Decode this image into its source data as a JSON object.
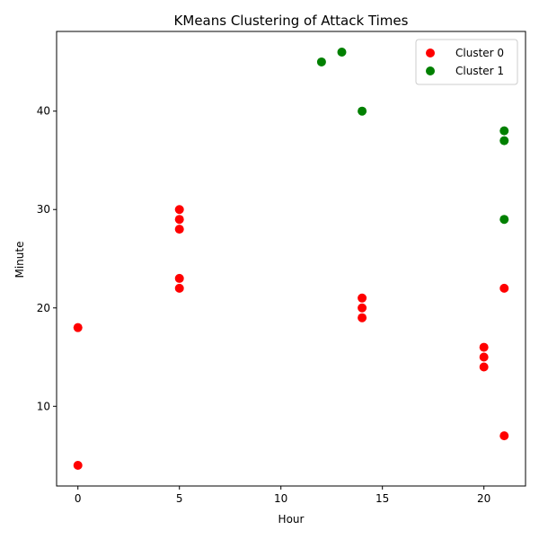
{
  "chart_data": {
    "type": "scatter",
    "title": "KMeans Clustering of Attack Times",
    "xlabel": "Hour",
    "ylabel": "Minute",
    "xlim": [
      -1.05,
      22.05
    ],
    "ylim": [
      1.9,
      48.1
    ],
    "xticks": [
      0,
      5,
      10,
      15,
      20
    ],
    "yticks": [
      10,
      20,
      30,
      40
    ],
    "grid": false,
    "legend_position": "top-right",
    "series": [
      {
        "name": "Cluster 0",
        "color": "#ff0000",
        "points": [
          {
            "x": 0,
            "y": 4
          },
          {
            "x": 0,
            "y": 18
          },
          {
            "x": 5,
            "y": 22
          },
          {
            "x": 5,
            "y": 23
          },
          {
            "x": 5,
            "y": 28
          },
          {
            "x": 5,
            "y": 29
          },
          {
            "x": 5,
            "y": 30
          },
          {
            "x": 14,
            "y": 19
          },
          {
            "x": 14,
            "y": 20
          },
          {
            "x": 14,
            "y": 21
          },
          {
            "x": 20,
            "y": 14
          },
          {
            "x": 20,
            "y": 15
          },
          {
            "x": 20,
            "y": 16
          },
          {
            "x": 21,
            "y": 7
          },
          {
            "x": 21,
            "y": 22
          }
        ]
      },
      {
        "name": "Cluster 1",
        "color": "#008000",
        "points": [
          {
            "x": 12,
            "y": 45
          },
          {
            "x": 13,
            "y": 46
          },
          {
            "x": 14,
            "y": 40
          },
          {
            "x": 21,
            "y": 29
          },
          {
            "x": 21,
            "y": 37
          },
          {
            "x": 21,
            "y": 38
          }
        ]
      }
    ]
  }
}
